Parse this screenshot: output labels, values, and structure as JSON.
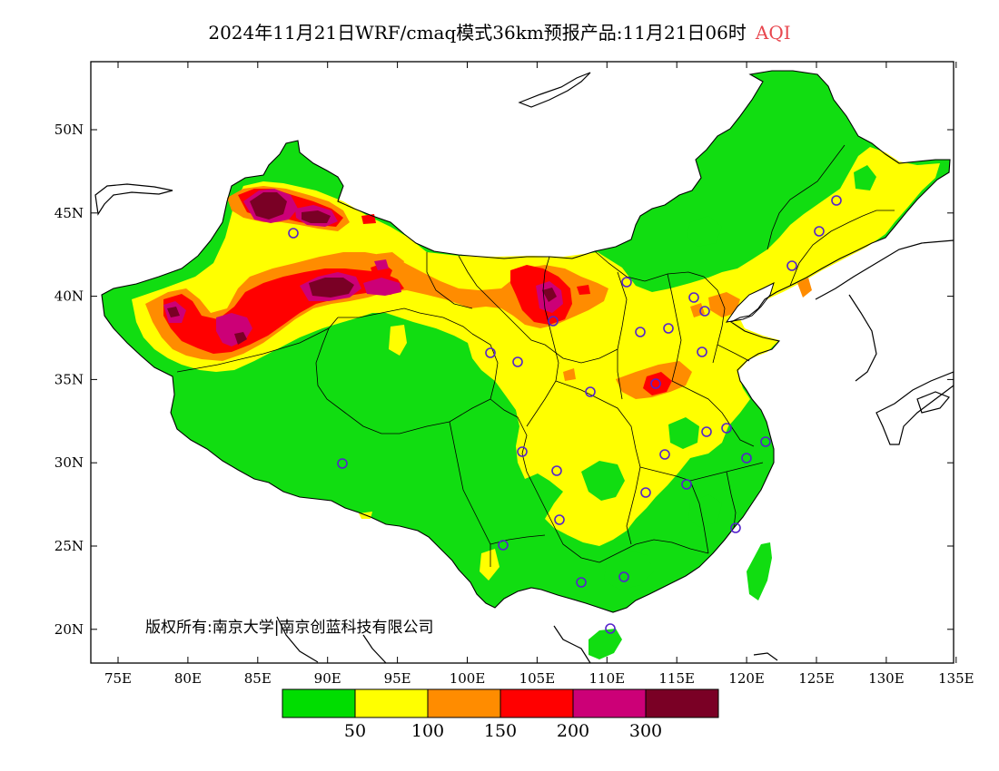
{
  "title": {
    "main": "2024年11月21日WRF/cmaq模式36km预报产品:11月21日06时",
    "variable": "AQI",
    "variable_color": "#e8474f"
  },
  "axes": {
    "longitude_ticks": [
      "75E",
      "80E",
      "85E",
      "90E",
      "95E",
      "100E",
      "105E",
      "110E",
      "115E",
      "120E",
      "125E",
      "130E",
      "135E"
    ],
    "latitude_ticks": [
      "50N",
      "45N",
      "40N",
      "35N",
      "30N",
      "25N",
      "20N"
    ]
  },
  "copyright": "版权所有:南京大学|南京创蓝科技有限公司",
  "legend": {
    "colors": [
      "#00dd00",
      "#ffff00",
      "#ff8c00",
      "#ff0000",
      "#cc0077",
      "#7a0025"
    ],
    "labels": [
      "50",
      "100",
      "150",
      "200",
      "300"
    ]
  },
  "map": {
    "land_color": "#11dd11",
    "ocean_color": "#ffffff",
    "station_marker_color": "#5522cc"
  }
}
